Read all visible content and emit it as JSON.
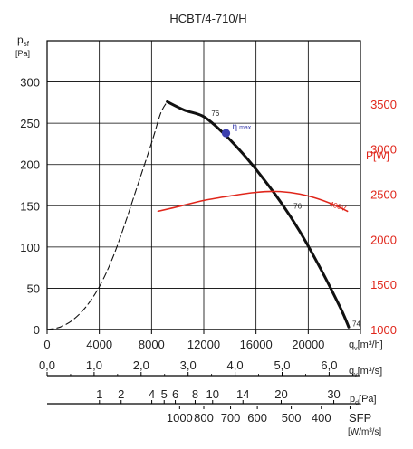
{
  "chart_data": {
    "type": "line",
    "title": "HCBT/4-710/H",
    "y_left": {
      "label": "p",
      "label_sub": "sf",
      "unit": "[Pa]",
      "range": [
        0,
        350
      ],
      "ticks": [
        0,
        50,
        100,
        150,
        200,
        250,
        300
      ]
    },
    "y_right": {
      "label": "P[W]",
      "range": [
        1000,
        4200
      ],
      "ticks": [
        1000,
        1500,
        2000,
        2500,
        3000,
        3500
      ],
      "color": "#e0261b"
    },
    "x": {
      "range": [
        0,
        24000
      ],
      "ticks": [
        0,
        4000,
        8000,
        12000,
        16000,
        20000,
        24000
      ],
      "tick_labels": [
        "0",
        "4000",
        "8000",
        "12000",
        "16000",
        "20000"
      ],
      "unit_label": "q",
      "unit_sub": "v",
      "unit": "[m³/h]"
    },
    "scale_ms": {
      "ticks": [
        0,
        1,
        2,
        3,
        4,
        5,
        6
      ],
      "labels": [
        "0,0",
        "1,0",
        "2,0",
        "3,0",
        "4,0",
        "5,0",
        "6,0"
      ],
      "unit_label": "q",
      "unit_sub": "v",
      "unit": "[m³/s]"
    },
    "scale_pd": {
      "ticks": [
        1,
        2,
        4,
        5,
        6,
        8,
        10,
        14,
        20,
        30
      ],
      "labels": [
        "1",
        "2",
        "4",
        "5",
        "6",
        "8",
        "10",
        "14",
        "20",
        "30"
      ],
      "unit_label": "p",
      "unit_sub": "d",
      "unit": "[Pa]"
    },
    "scale_sfp": {
      "positions": [
        10150,
        12000,
        14050,
        16100,
        18700,
        21000,
        23200
      ],
      "labels": [
        "1000",
        "800",
        "700",
        "600",
        "500",
        "400",
        ""
      ],
      "unit_label": "SFP",
      "unit": "[W/m³/s]"
    },
    "series": [
      {
        "axis": "left",
        "style": "solid",
        "color": "#111111",
        "x": [
          9200,
          10500,
          12000,
          13500,
          15000,
          16500,
          18000,
          19500,
          21000,
          22500,
          23100
        ],
        "y": [
          276,
          266,
          258,
          238,
          213,
          184,
          152,
          115,
          72,
          25,
          3
        ]
      },
      {
        "axis": "left",
        "style": "dashed",
        "color": "#111111",
        "x": [
          0,
          1000,
          2000,
          3000,
          4000,
          5000,
          6000,
          7000,
          8000,
          8700,
          9200
        ],
        "y": [
          0,
          3,
          12,
          28,
          52,
          86,
          130,
          178,
          226,
          262,
          276
        ]
      },
      {
        "axis": "right",
        "style": "solid",
        "color": "#e0261b",
        "name": "400V",
        "x": [
          8500,
          10000,
          12000,
          14000,
          16000,
          17500,
          19000,
          20500,
          22000,
          23000
        ],
        "y": [
          2310,
          2360,
          2430,
          2480,
          2520,
          2530,
          2510,
          2460,
          2380,
          2310
        ]
      }
    ],
    "annotations": [
      {
        "text": "76",
        "x": 12300,
        "y": 262
      },
      {
        "text": "76",
        "x": 18600,
        "y": 150
      },
      {
        "text": "74",
        "x": 23100,
        "y": 7
      }
    ],
    "eta_max": {
      "label": "η",
      "sub": "max",
      "x": 13700,
      "y": 238,
      "color": "#3b3fae"
    },
    "grid": true
  }
}
